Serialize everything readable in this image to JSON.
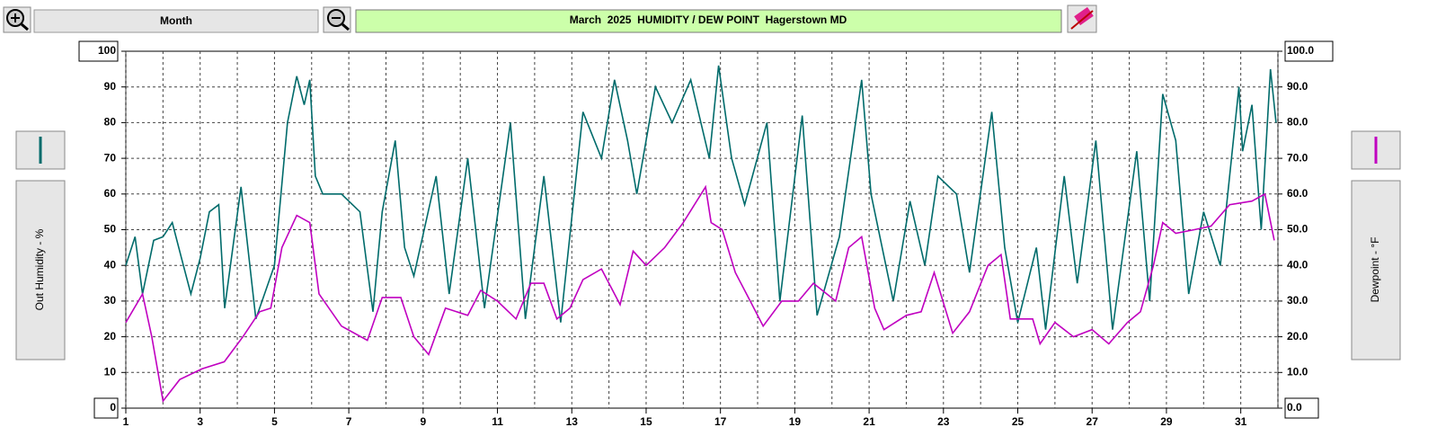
{
  "toolbar": {
    "period": "Month"
  },
  "chart_data": {
    "type": "line",
    "title": "March  2025  HUMIDITY / DEW POINT  Hagerstown MD",
    "y_label": "Out Humidity - %",
    "y2_label": "Dewpoint - °F",
    "xlim": [
      1,
      32
    ],
    "xticks": [
      1,
      3,
      5,
      7,
      9,
      11,
      13,
      15,
      17,
      19,
      21,
      23,
      25,
      27,
      29,
      31
    ],
    "x_grid_step": 1,
    "ylim": [
      0,
      100
    ],
    "yticks": [
      0,
      10,
      20,
      30,
      40,
      50,
      60,
      70,
      80,
      90,
      100
    ],
    "y2lim": [
      0,
      100
    ],
    "y2ticks": [
      {
        "value": 0,
        "label": "0.0"
      },
      {
        "value": 10,
        "label": "10.0"
      },
      {
        "value": 20,
        "label": "20.0"
      },
      {
        "value": 30,
        "label": "30.0"
      },
      {
        "value": 40,
        "label": "40.0"
      },
      {
        "value": 50,
        "label": "50.0"
      },
      {
        "value": 60,
        "label": "60.0"
      },
      {
        "value": 70,
        "label": "70.0"
      },
      {
        "value": 80,
        "label": "80.0"
      },
      {
        "value": 90,
        "label": "90.0"
      },
      {
        "value": 100,
        "label": "100.0"
      }
    ],
    "grid": true,
    "series": [
      {
        "color": "#006b6b",
        "axis": "y",
        "x": [
          1.0,
          1.25,
          1.45,
          1.75,
          2.0,
          2.25,
          2.5,
          2.75,
          3.0,
          3.25,
          3.5,
          3.66,
          4.1,
          4.5,
          5.0,
          5.35,
          5.6,
          5.8,
          5.95,
          6.1,
          6.3,
          6.8,
          7.3,
          7.65,
          7.9,
          8.25,
          8.5,
          8.75,
          9.35,
          9.7,
          10.2,
          10.65,
          11.35,
          11.75,
          12.25,
          12.7,
          13.3,
          13.8,
          14.15,
          14.5,
          14.75,
          15.25,
          15.7,
          16.2,
          16.7,
          16.95,
          17.3,
          17.65,
          18.25,
          18.6,
          19.2,
          19.6,
          20.2,
          20.8,
          21.05,
          21.65,
          22.1,
          22.5,
          22.85,
          23.35,
          23.7,
          24.3,
          24.65,
          25.0,
          25.5,
          25.75,
          26.25,
          26.6,
          27.1,
          27.55,
          28.2,
          28.55,
          28.9,
          29.25,
          29.6,
          30.0,
          30.45,
          30.95,
          31.05,
          31.3,
          31.55,
          31.8,
          31.95
        ],
        "values": [
          40,
          48,
          32,
          47,
          48,
          52,
          42,
          32,
          42,
          55,
          57,
          28,
          62,
          25,
          40,
          80,
          93,
          85,
          92,
          65,
          60,
          60,
          55,
          27,
          55,
          75,
          45,
          37,
          65,
          32,
          70,
          28,
          80,
          25,
          65,
          24,
          83,
          70,
          92,
          75,
          60,
          90,
          80,
          92,
          70,
          96,
          70,
          57,
          80,
          30,
          82,
          26,
          48,
          92,
          60,
          30,
          58,
          40,
          65,
          60,
          38,
          83,
          45,
          24,
          45,
          22,
          65,
          35,
          75,
          22,
          72,
          30,
          88,
          75,
          32,
          55,
          40,
          90,
          72,
          85,
          50,
          95,
          80
        ]
      },
      {
        "color": "#c000c0",
        "axis": "y2",
        "x": [
          1.0,
          1.45,
          1.7,
          2.0,
          2.45,
          3.05,
          3.65,
          4.15,
          4.6,
          4.9,
          5.2,
          5.6,
          5.95,
          6.2,
          6.8,
          7.5,
          7.9,
          8.4,
          8.75,
          9.15,
          9.6,
          10.2,
          10.55,
          11.0,
          11.5,
          11.9,
          12.25,
          12.6,
          12.95,
          13.3,
          13.8,
          14.3,
          14.65,
          15.0,
          15.5,
          16.0,
          16.6,
          16.75,
          17.05,
          17.4,
          17.8,
          18.15,
          18.65,
          19.1,
          19.5,
          20.1,
          20.45,
          20.8,
          21.15,
          21.4,
          22.0,
          22.4,
          22.75,
          23.25,
          23.7,
          24.2,
          24.55,
          24.8,
          25.4,
          25.6,
          26.0,
          26.5,
          27.0,
          27.45,
          27.95,
          28.3,
          28.65,
          28.9,
          29.25,
          29.75,
          30.2,
          30.7,
          31.3,
          31.65,
          31.9
        ],
        "values": [
          24,
          32,
          20,
          2,
          8,
          11,
          13,
          20,
          27,
          28,
          45,
          54,
          52,
          32,
          23,
          19,
          31,
          31,
          20,
          15,
          28,
          26,
          33,
          30,
          25,
          35,
          35,
          25,
          28,
          36,
          39,
          29,
          44,
          40,
          45,
          52,
          62,
          52,
          50,
          38,
          30,
          23,
          30,
          30,
          35,
          30,
          45,
          48,
          28,
          22,
          26,
          27,
          38,
          21,
          27,
          40,
          43,
          25,
          25,
          18,
          24,
          20,
          22,
          18,
          24,
          27,
          40,
          52,
          49,
          50,
          51,
          57,
          58,
          60,
          47
        ]
      }
    ]
  }
}
